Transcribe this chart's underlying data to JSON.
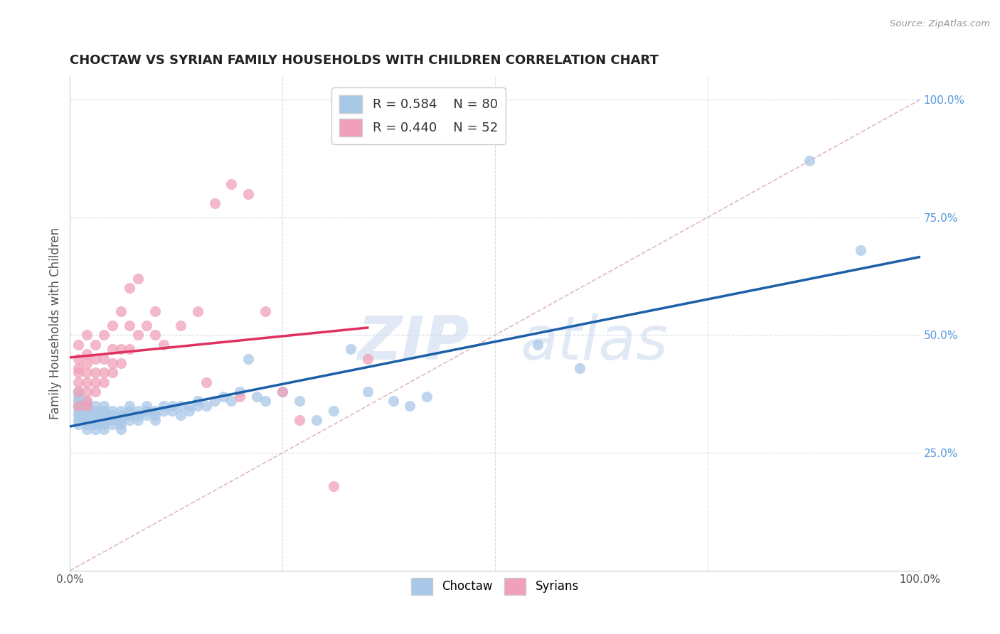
{
  "title": "CHOCTAW VS SYRIAN FAMILY HOUSEHOLDS WITH CHILDREN CORRELATION CHART",
  "source_text": "Source: ZipAtlas.com",
  "xlabel": "",
  "ylabel": "Family Households with Children",
  "watermark_zip": "ZIP",
  "watermark_atlas": "atlas",
  "choctaw_R": 0.584,
  "choctaw_N": 80,
  "syrian_R": 0.44,
  "syrian_N": 52,
  "choctaw_color": "#a8c8e8",
  "choctaw_line_color": "#1a5fa8",
  "syrian_color": "#f0a0b8",
  "syrian_line_color": "#e03060",
  "background_color": "#ffffff",
  "grid_color": "#d8dce8",
  "diag_color": "#e0b0b8",
  "xlim": [
    0.0,
    1.0
  ],
  "ylim": [
    0.0,
    1.05
  ],
  "ytick_vals": [
    0.25,
    0.5,
    0.75,
    1.0
  ],
  "ytick_labels_right": [
    "25.0%",
    "50.0%",
    "75.0%",
    "100.0%"
  ],
  "choctaw_x": [
    0.01,
    0.01,
    0.01,
    0.01,
    0.01,
    0.01,
    0.01,
    0.01,
    0.02,
    0.02,
    0.02,
    0.02,
    0.02,
    0.02,
    0.02,
    0.03,
    0.03,
    0.03,
    0.03,
    0.03,
    0.03,
    0.04,
    0.04,
    0.04,
    0.04,
    0.04,
    0.04,
    0.05,
    0.05,
    0.05,
    0.05,
    0.06,
    0.06,
    0.06,
    0.06,
    0.06,
    0.07,
    0.07,
    0.07,
    0.07,
    0.08,
    0.08,
    0.08,
    0.09,
    0.09,
    0.09,
    0.1,
    0.1,
    0.1,
    0.11,
    0.11,
    0.12,
    0.12,
    0.13,
    0.13,
    0.14,
    0.14,
    0.15,
    0.15,
    0.16,
    0.17,
    0.18,
    0.19,
    0.2,
    0.21,
    0.22,
    0.23,
    0.25,
    0.27,
    0.29,
    0.31,
    0.33,
    0.35,
    0.38,
    0.4,
    0.42,
    0.55,
    0.6,
    0.87,
    0.93
  ],
  "choctaw_y": [
    0.34,
    0.35,
    0.36,
    0.37,
    0.38,
    0.33,
    0.31,
    0.32,
    0.33,
    0.34,
    0.35,
    0.36,
    0.31,
    0.32,
    0.3,
    0.33,
    0.34,
    0.35,
    0.32,
    0.31,
    0.3,
    0.34,
    0.35,
    0.33,
    0.32,
    0.31,
    0.3,
    0.34,
    0.33,
    0.32,
    0.31,
    0.34,
    0.33,
    0.32,
    0.31,
    0.3,
    0.35,
    0.34,
    0.33,
    0.32,
    0.34,
    0.33,
    0.32,
    0.35,
    0.34,
    0.33,
    0.34,
    0.33,
    0.32,
    0.35,
    0.34,
    0.35,
    0.34,
    0.35,
    0.33,
    0.35,
    0.34,
    0.36,
    0.35,
    0.35,
    0.36,
    0.37,
    0.36,
    0.38,
    0.45,
    0.37,
    0.36,
    0.38,
    0.36,
    0.32,
    0.34,
    0.47,
    0.38,
    0.36,
    0.35,
    0.37,
    0.48,
    0.43,
    0.87,
    0.68
  ],
  "syrian_x": [
    0.01,
    0.01,
    0.01,
    0.01,
    0.01,
    0.01,
    0.01,
    0.02,
    0.02,
    0.02,
    0.02,
    0.02,
    0.02,
    0.02,
    0.02,
    0.03,
    0.03,
    0.03,
    0.03,
    0.03,
    0.04,
    0.04,
    0.04,
    0.04,
    0.05,
    0.05,
    0.05,
    0.05,
    0.06,
    0.06,
    0.06,
    0.07,
    0.07,
    0.07,
    0.08,
    0.08,
    0.09,
    0.1,
    0.1,
    0.11,
    0.13,
    0.15,
    0.16,
    0.17,
    0.19,
    0.2,
    0.21,
    0.23,
    0.25,
    0.27,
    0.31,
    0.35
  ],
  "syrian_y": [
    0.35,
    0.38,
    0.4,
    0.42,
    0.43,
    0.45,
    0.48,
    0.36,
    0.38,
    0.4,
    0.42,
    0.44,
    0.46,
    0.5,
    0.35,
    0.38,
    0.4,
    0.42,
    0.45,
    0.48,
    0.4,
    0.42,
    0.45,
    0.5,
    0.42,
    0.44,
    0.47,
    0.52,
    0.44,
    0.47,
    0.55,
    0.47,
    0.52,
    0.6,
    0.5,
    0.62,
    0.52,
    0.5,
    0.55,
    0.48,
    0.52,
    0.55,
    0.4,
    0.78,
    0.82,
    0.37,
    0.8,
    0.55,
    0.38,
    0.32,
    0.18,
    0.45
  ]
}
